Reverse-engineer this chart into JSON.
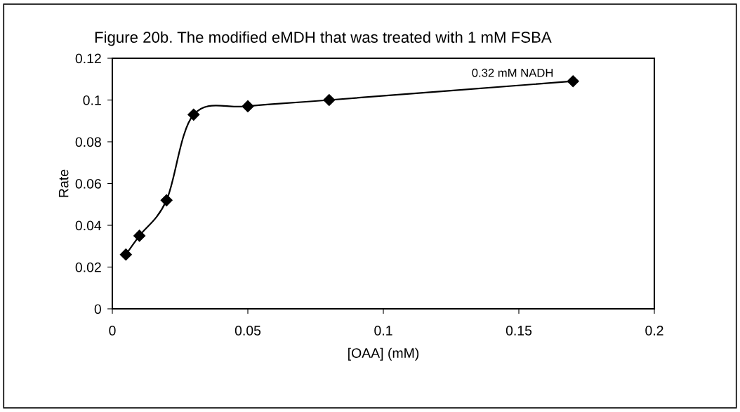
{
  "chart_data": {
    "type": "line",
    "title": "Figure 20b. The modified eMDH that was treated with 1 mM FSBA",
    "xlabel": "[OAA] (mM)",
    "ylabel": "Rate",
    "x": [
      0.005,
      0.01,
      0.02,
      0.03,
      0.05,
      0.08,
      0.17
    ],
    "series": [
      {
        "name": "0.32 mM NADH",
        "color": "#000000",
        "values": [
          0.026,
          0.035,
          0.052,
          0.093,
          0.097,
          0.1,
          0.109
        ]
      }
    ],
    "xlim": [
      0,
      0.2
    ],
    "xticks": [
      0,
      0.05,
      0.1,
      0.15,
      0.2
    ],
    "ylim": [
      0,
      0.12
    ],
    "yticks": [
      0,
      0.02,
      0.04,
      0.06,
      0.08,
      0.1,
      0.12
    ],
    "marker": "diamond",
    "line_style": "solid",
    "grid": false,
    "legend": false
  }
}
